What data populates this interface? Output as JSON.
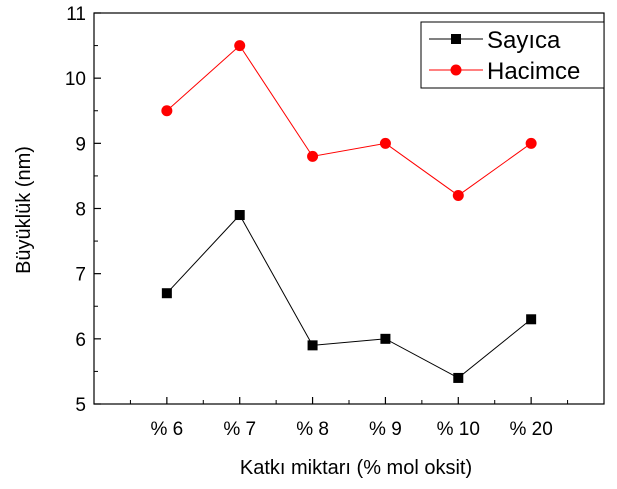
{
  "chart_data": {
    "type": "line",
    "xlabel": "Katkı miktarı (% mol oksit)",
    "ylabel": "Büyüklük (nm)",
    "categories": [
      "% 6",
      "% 7",
      "% 8",
      "% 9",
      "% 10",
      "% 20"
    ],
    "ylim": [
      5,
      11
    ],
    "yticks": [
      "5",
      "6",
      "7",
      "8",
      "9",
      "10",
      "11"
    ],
    "legend_position": "top-right",
    "grid": false,
    "series": [
      {
        "name": "Sayıca",
        "color": "#000000",
        "marker": "square",
        "values": [
          6.7,
          7.9,
          5.9,
          6.0,
          5.4,
          6.3
        ]
      },
      {
        "name": "Hacimce",
        "color": "#ff0000",
        "marker": "circle",
        "values": [
          9.5,
          10.5,
          8.8,
          9.0,
          8.2,
          9.0
        ]
      }
    ]
  }
}
